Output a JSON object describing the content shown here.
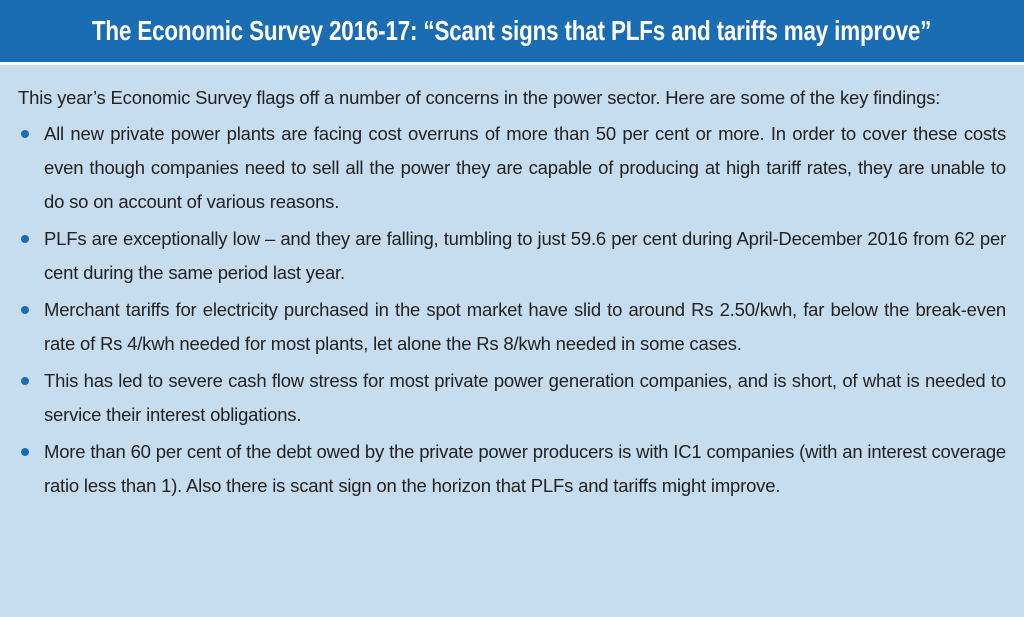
{
  "header": {
    "title": "The Economic Survey 2016-17: “Scant signs that PLFs and tariffs may improve”"
  },
  "intro": "This year’s Economic Survey flags off a number of concerns in the power sector. Here are some of the key findings:",
  "bullets": [
    "All new private power plants are facing cost overruns of more than 50 per cent or more. In order to cover these costs even though companies need to sell all the power they are capable of producing at high tariff rates, they are unable to do so on account of various reasons.",
    "PLFs are exceptionally low – and they are falling, tumbling to just 59.6 per cent during April-December 2016 from 62 per cent during the same period last year.",
    "Merchant tariffs for electricity purchased in the spot market have slid to around Rs 2.50/kwh, far below the break-even rate of Rs 4/kwh needed for most plants, let alone the Rs 8/kwh needed in some cases.",
    "This has led to severe cash flow stress for most private power generation companies, and is short, of what is needed to service their interest obligations.",
    "More than 60 per cent of the debt owed by the private power producers is with IC1 companies (with an interest coverage ratio less than 1). Also there is scant sign on the horizon that PLFs and tariffs might improve."
  ]
}
